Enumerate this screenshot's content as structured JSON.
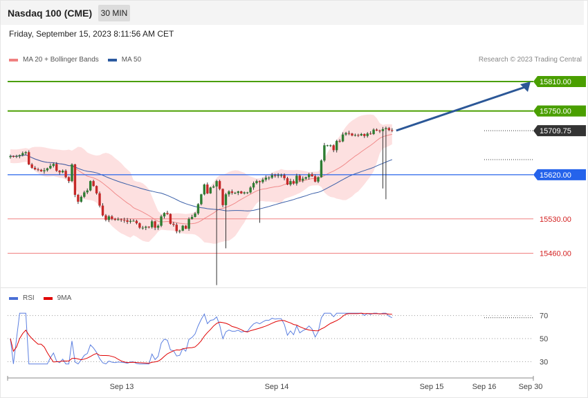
{
  "header": {
    "title": "Nasdaq 100 (CME)",
    "timeframe": "30 MIN",
    "datetime": "Friday, September 15, 2023 8:11:56 AM CET"
  },
  "legend": {
    "main": [
      {
        "label": "MA 20 + Bollinger Bands",
        "color": "#f08080"
      },
      {
        "label": "MA 50",
        "color": "#2c5aa0"
      }
    ],
    "rsi": [
      {
        "label": "RSI",
        "color": "#4a6fd6"
      },
      {
        "label": "9MA",
        "color": "#e00000"
      }
    ]
  },
  "credit": "Research © 2023 Trading Central",
  "colors": {
    "up": "#2e7d32",
    "down": "#c62828",
    "green_level": "#4a9f00",
    "blue_level": "#2563eb",
    "red_level": "#d32020",
    "arrow": "#2b5797"
  },
  "chart_data": [
    {
      "type": "candlestick",
      "ylim": [
        15393,
        15841
      ],
      "price_labels": [
        {
          "label": "15810.00",
          "value": 15810,
          "style": "green"
        },
        {
          "label": "15750.00",
          "value": 15750,
          "style": "green"
        },
        {
          "label": "15709.75",
          "value": 15709.75,
          "style": "current"
        },
        {
          "label": "15620.00",
          "value": 15620,
          "style": "blue"
        },
        {
          "label": "15530.00",
          "value": 15530,
          "style": "red"
        },
        {
          "label": "15460.00",
          "value": 15460,
          "style": "red"
        }
      ],
      "forecast_arrow": {
        "from": 15710,
        "to": 15810
      },
      "closes": [
        15658,
        15657,
        15658,
        15660,
        15664,
        15666,
        15641,
        15634,
        15631,
        15630,
        15627,
        15629,
        15633,
        15638,
        15642,
        15628,
        15625,
        15628,
        15615,
        15607,
        15641,
        15579,
        15565,
        15575,
        15584,
        15588,
        15607,
        15597,
        15582,
        15557,
        15537,
        15528,
        15535,
        15530,
        15528,
        15529,
        15528,
        15527,
        15524,
        15526,
        15526,
        15521,
        15512,
        15512,
        15514,
        15513,
        15525,
        15512,
        15516,
        15535,
        15542,
        15540,
        15520,
        15518,
        15505,
        15506,
        15516,
        15510,
        15530,
        15534,
        15541,
        15560,
        15580,
        15600,
        15582,
        15594,
        15596,
        15607,
        15591,
        15558,
        15580,
        15586,
        15583,
        15583,
        15586,
        15582,
        15584,
        15584,
        15594,
        15603,
        15607,
        15605,
        15610,
        15614,
        15614,
        15619,
        15618,
        15619,
        15619,
        15613,
        15600,
        15607,
        15602,
        15618,
        15608,
        15612,
        15615,
        15621,
        15617,
        15606,
        15615,
        15649,
        15680,
        15680,
        15680,
        15670,
        15689,
        15688,
        15702,
        15705,
        15704,
        15700,
        15701,
        15700,
        15703,
        15699,
        15704,
        15703,
        15712,
        15710,
        15709,
        15713,
        15715,
        15711,
        15709.75
      ],
      "x_ticks": [
        "Sep 13",
        "Sep 14",
        "Sep 15",
        "Sep 16",
        "Sep 30"
      ]
    },
    {
      "type": "line",
      "name": "RSI",
      "ylim": [
        20,
        80
      ],
      "y_ticks": [
        "70",
        "50",
        "30"
      ],
      "series": [
        {
          "name": "RSI"
        },
        {
          "name": "9MA"
        }
      ]
    }
  ]
}
